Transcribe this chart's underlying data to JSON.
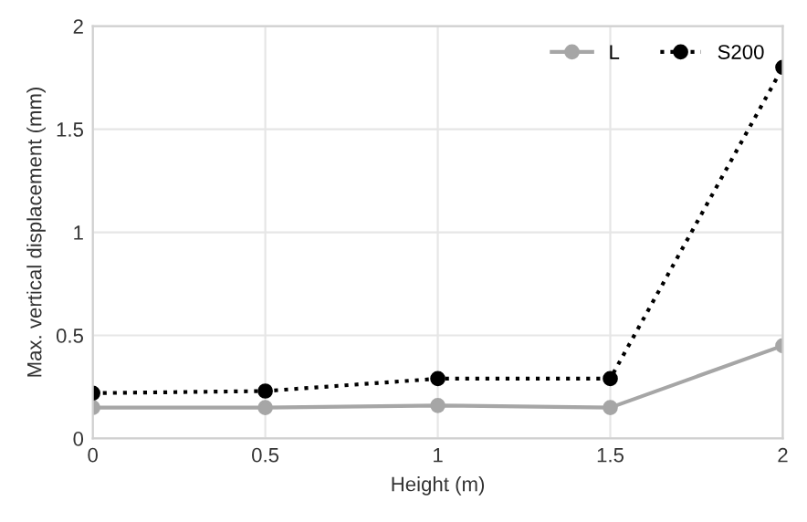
{
  "chart_data": {
    "type": "line",
    "xlabel": "Height (m)",
    "ylabel": "Max. vertical displacement (mm)",
    "x": [
      0,
      0.5,
      1,
      1.5,
      2
    ],
    "series": [
      {
        "name": "L",
        "color": "#a6a6a6",
        "values": [
          0.15,
          0.15,
          0.16,
          0.15,
          0.45
        ],
        "line_style": "solid"
      },
      {
        "name": "S200",
        "color": "#000000",
        "values": [
          0.22,
          0.23,
          0.29,
          0.29,
          1.8
        ],
        "line_style": "dotted"
      }
    ],
    "marker": "circle",
    "xlim": [
      0,
      2
    ],
    "ylim": [
      0,
      2
    ],
    "xticks": [
      0,
      0.5,
      1,
      1.5,
      2
    ],
    "yticks": [
      0,
      0.5,
      1,
      1.5,
      2
    ],
    "grid": true,
    "legend": "top right"
  }
}
